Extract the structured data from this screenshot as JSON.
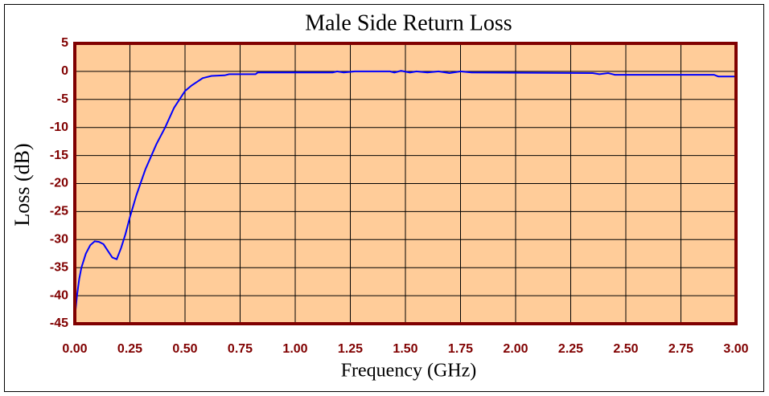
{
  "chart_data": {
    "type": "line",
    "title": "Male Side Return Loss",
    "x_label": "Frequency (GHz)",
    "y_label": "Loss (dB)",
    "x": [
      0.0,
      0.01,
      0.02,
      0.03,
      0.05,
      0.07,
      0.09,
      0.11,
      0.13,
      0.15,
      0.17,
      0.19,
      0.21,
      0.23,
      0.25,
      0.28,
      0.32,
      0.37,
      0.41,
      0.45,
      0.5,
      0.53,
      0.58,
      0.62,
      0.68,
      0.7,
      0.82,
      0.83,
      1.17,
      1.19,
      1.22,
      1.27,
      1.43,
      1.45,
      1.48,
      1.52,
      1.55,
      1.6,
      1.65,
      1.7,
      1.75,
      1.8,
      2.35,
      2.38,
      2.42,
      2.45,
      2.9,
      2.92,
      3.0
    ],
    "values": [
      -44,
      -40,
      -37,
      -35,
      -32.5,
      -31,
      -30.3,
      -30.4,
      -30.8,
      -32,
      -33.2,
      -33.5,
      -31.5,
      -29,
      -26,
      -22,
      -17.5,
      -13,
      -10,
      -6.5,
      -3.5,
      -2.5,
      -1.2,
      -0.8,
      -0.7,
      -0.5,
      -0.5,
      -0.2,
      -0.2,
      0,
      -0.2,
      0,
      0,
      -0.2,
      0.1,
      -0.2,
      0,
      -0.2,
      0,
      -0.3,
      0,
      -0.2,
      -0.3,
      -0.5,
      -0.3,
      -0.6,
      -0.6,
      -0.9,
      -0.9
    ],
    "color": "#0000ff",
    "xlim": [
      0,
      3
    ],
    "ylim": [
      -45,
      5
    ],
    "xticks": [
      {
        "value": 0,
        "label": "0.00"
      },
      0.25,
      {
        "value": 0.5,
        "label": "0.50"
      },
      0.75,
      {
        "value": 1,
        "label": "1.00"
      },
      1.25,
      {
        "value": 1.5,
        "label": "1.50"
      },
      1.75,
      {
        "value": 2,
        "label": "2.00"
      },
      2.25,
      {
        "value": 2.5,
        "label": "2.50"
      },
      2.75,
      {
        "value": 3,
        "label": "3.00"
      }
    ],
    "yticks": [
      5,
      0,
      -5,
      -10,
      -15,
      -20,
      -25,
      -30,
      -35,
      -40,
      -45
    ],
    "grid": true
  }
}
